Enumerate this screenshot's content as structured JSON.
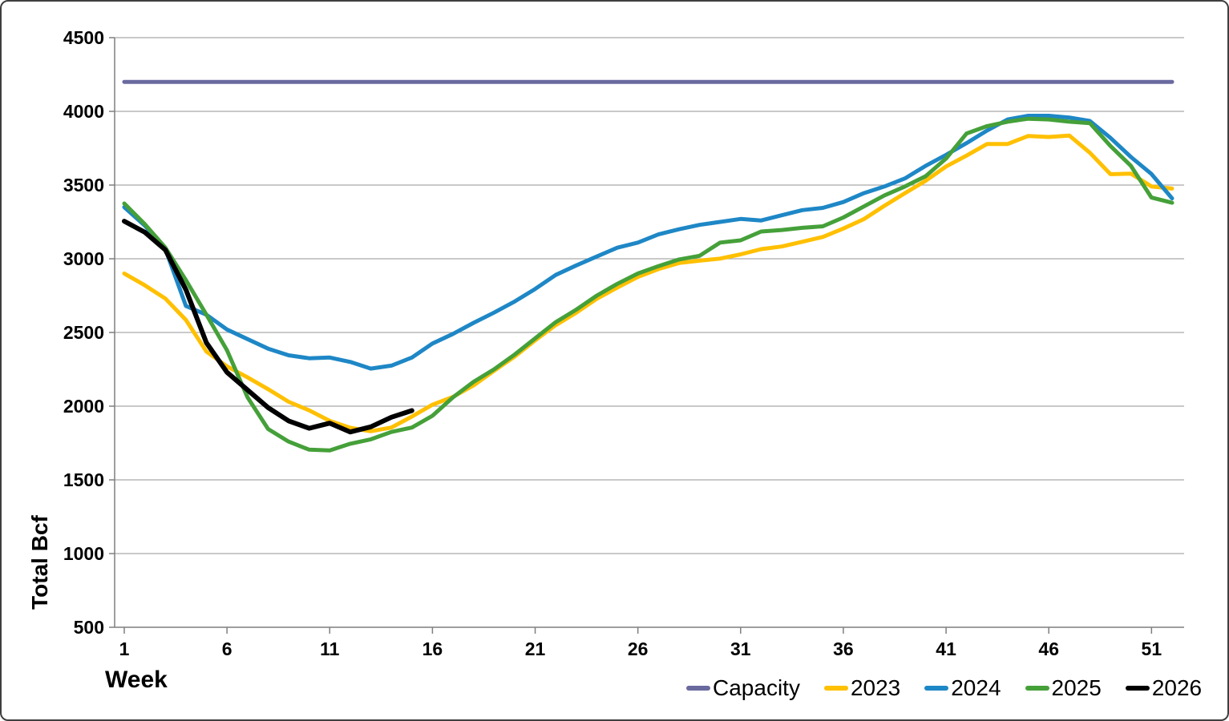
{
  "chart_data": {
    "type": "line",
    "title": "",
    "xlabel": "Week",
    "ylabel": "Total Bcf",
    "x_unit": "week number",
    "xlim": [
      1,
      52
    ],
    "ylim": [
      500,
      4500
    ],
    "x_ticks": [
      1,
      6,
      11,
      16,
      21,
      26,
      31,
      36,
      41,
      46,
      51
    ],
    "y_ticks": [
      500,
      1000,
      1500,
      2000,
      2500,
      3000,
      3500,
      4000,
      4500
    ],
    "grid": "horizontal",
    "legend_position": "bottom-right",
    "series": [
      {
        "name": "Capacity",
        "color": "#6A6A9F",
        "values": [
          4200,
          4200,
          4200,
          4200,
          4200,
          4200,
          4200,
          4200,
          4200,
          4200,
          4200,
          4200,
          4200,
          4200,
          4200,
          4200,
          4200,
          4200,
          4200,
          4200,
          4200,
          4200,
          4200,
          4200,
          4200,
          4200,
          4200,
          4200,
          4200,
          4200,
          4200,
          4200,
          4200,
          4200,
          4200,
          4200,
          4200,
          4200,
          4200,
          4200,
          4200,
          4200,
          4200,
          4200,
          4200,
          4200,
          4200,
          4200,
          4200,
          4200,
          4200,
          4200
        ]
      },
      {
        "name": "2023",
        "color": "#FFC000",
        "values": [
          2900,
          2820,
          2730,
          2585,
          2370,
          2270,
          2195,
          2115,
          2030,
          1972,
          1900,
          1853,
          1830,
          1855,
          1930,
          2010,
          2063,
          2141,
          2240,
          2336,
          2446,
          2550,
          2634,
          2729,
          2805,
          2877,
          2930,
          2971,
          2987,
          3001,
          3030,
          3065,
          3083,
          3115,
          3148,
          3205,
          3269,
          3359,
          3445,
          3529,
          3626,
          3700,
          3779,
          3779,
          3833,
          3826,
          3836,
          3719,
          3574,
          3577,
          3490,
          3476
        ]
      },
      {
        "name": "2024",
        "color": "#1E87C6",
        "values": [
          3350,
          3225,
          3065,
          2680,
          2620,
          2520,
          2455,
          2390,
          2345,
          2325,
          2330,
          2300,
          2255,
          2275,
          2330,
          2425,
          2490,
          2565,
          2635,
          2710,
          2795,
          2890,
          2955,
          3015,
          3075,
          3110,
          3165,
          3200,
          3230,
          3250,
          3270,
          3260,
          3295,
          3330,
          3345,
          3385,
          3445,
          3490,
          3545,
          3630,
          3705,
          3785,
          3870,
          3945,
          3970,
          3970,
          3958,
          3935,
          3820,
          3690,
          3575,
          3410
        ]
      },
      {
        "name": "2025",
        "color": "#45A039",
        "values": [
          3375,
          3235,
          3075,
          2855,
          2620,
          2380,
          2060,
          1845,
          1760,
          1705,
          1700,
          1745,
          1775,
          1825,
          1855,
          1935,
          2060,
          2165,
          2250,
          2350,
          2460,
          2570,
          2655,
          2750,
          2830,
          2900,
          2950,
          2995,
          3020,
          3110,
          3125,
          3185,
          3195,
          3210,
          3220,
          3280,
          3355,
          3430,
          3490,
          3560,
          3680,
          3850,
          3900,
          3930,
          3950,
          3945,
          3930,
          3920,
          3765,
          3630,
          3415,
          3380
        ]
      },
      {
        "name": "2026",
        "color": "#000000",
        "values": [
          3255,
          3180,
          3060,
          2790,
          2430,
          2230,
          2110,
          1990,
          1900,
          1850,
          1885,
          1825,
          1860,
          1925,
          1970
        ]
      }
    ]
  }
}
